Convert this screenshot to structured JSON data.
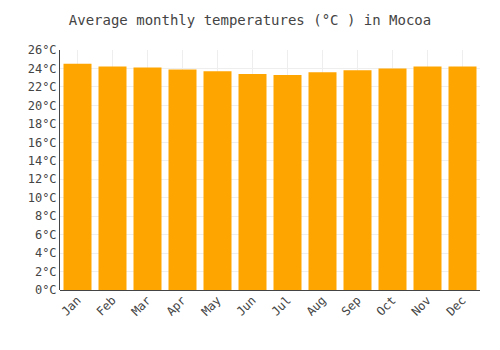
{
  "chart_data": {
    "type": "bar",
    "title": "Average monthly temperatures (°C ) in Mocoa",
    "categories": [
      "Jan",
      "Feb",
      "Mar",
      "Apr",
      "May",
      "Jun",
      "Jul",
      "Aug",
      "Sep",
      "Oct",
      "Nov",
      "Dec"
    ],
    "values": [
      24.5,
      24.2,
      24.1,
      23.9,
      23.7,
      23.4,
      23.3,
      23.6,
      23.8,
      24.0,
      24.2,
      24.2
    ],
    "color": "#FFA500",
    "ylim": [
      0,
      26
    ],
    "yticks": [
      {
        "value": 0,
        "label": "0°C"
      },
      {
        "value": 2,
        "label": "2°C"
      },
      {
        "value": 4,
        "label": "4°C"
      },
      {
        "value": 6,
        "label": "6°C"
      },
      {
        "value": 8,
        "label": "8°C"
      },
      {
        "value": 10,
        "label": "10°C"
      },
      {
        "value": 12,
        "label": "12°C"
      },
      {
        "value": 14,
        "label": "14°C"
      },
      {
        "value": 16,
        "label": "16°C"
      },
      {
        "value": 18,
        "label": "18°C"
      },
      {
        "value": 20,
        "label": "20°C"
      },
      {
        "value": 22,
        "label": "22°C"
      },
      {
        "value": 24,
        "label": "24°C"
      },
      {
        "value": 26,
        "label": "26°C"
      }
    ],
    "grid": true
  }
}
